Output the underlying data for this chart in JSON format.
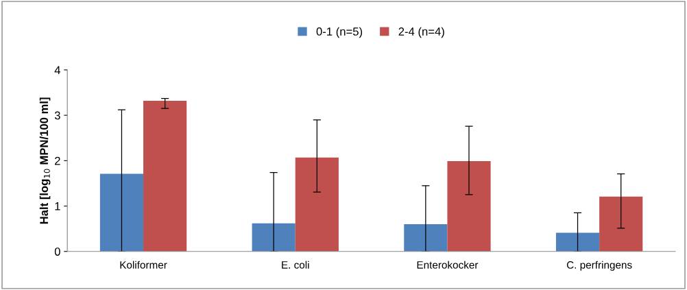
{
  "chart_data": {
    "type": "bar",
    "ylabel": "Halt [log$_{10}$ MPN/100 ml]",
    "categories": [
      "Koliformer",
      "E. coli",
      "Enterokocker",
      "C. perfringens"
    ],
    "series": [
      {
        "name": "0-1 (n=5)",
        "color": "#4f81bd",
        "values": [
          1.71,
          0.62,
          0.6,
          0.41
        ],
        "errors": [
          [
            0,
            3.12
          ],
          [
            0,
            1.74
          ],
          [
            0,
            1.45
          ],
          [
            0,
            0.85
          ]
        ]
      },
      {
        "name": "2-4 (n=4)",
        "color": "#c0504d",
        "values": [
          3.32,
          2.07,
          1.99,
          1.21
        ],
        "errors": [
          [
            3.15,
            3.37
          ],
          [
            1.31,
            2.9
          ],
          [
            1.25,
            2.76
          ],
          [
            0.51,
            1.71
          ]
        ]
      }
    ],
    "ylim": [
      0,
      4
    ],
    "yticks": [
      0,
      1,
      2,
      3,
      4
    ],
    "grid": false,
    "legend": "top"
  }
}
